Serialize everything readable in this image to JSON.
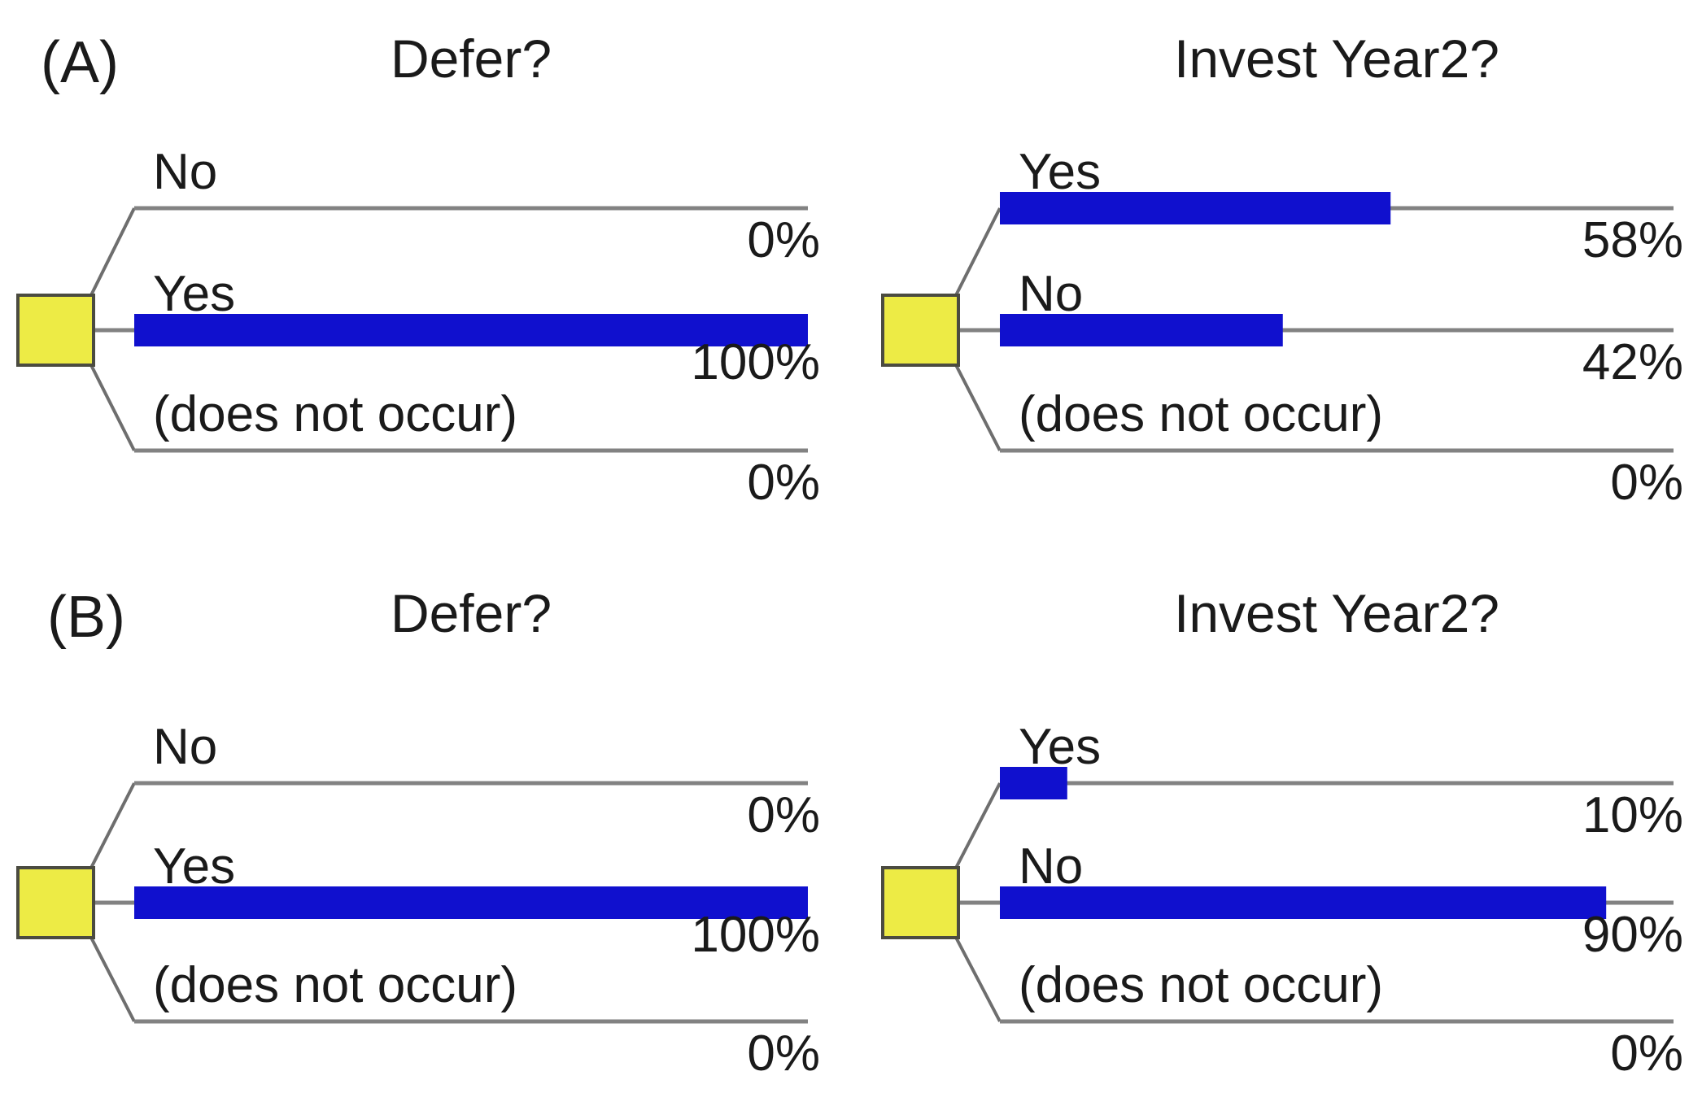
{
  "figure": {
    "description": "Decision tree policy diagrams",
    "colors": {
      "bar": "#1010CE",
      "node_fill": "#EDEB45",
      "node_border": "#4b4b40",
      "line": "#828282",
      "diagonal": "#6e6e6e",
      "text": "#1a1a1a",
      "background": "#ffffff"
    },
    "panels": [
      {
        "label": "(A)",
        "trees": [
          {
            "title": "Defer?",
            "node": "decision-node",
            "branches": [
              {
                "label": "No",
                "percent": "0%",
                "value": 0
              },
              {
                "label": "Yes",
                "percent": "100%",
                "value": 100
              },
              {
                "label": "(does not occur)",
                "percent": "0%",
                "value": 0
              }
            ]
          },
          {
            "title": "Invest Year2?",
            "node": "decision-node",
            "branches": [
              {
                "label": "Yes",
                "percent": "58%",
                "value": 58
              },
              {
                "label": "No",
                "percent": "42%",
                "value": 42
              },
              {
                "label": "(does not occur)",
                "percent": "0%",
                "value": 0
              }
            ]
          }
        ]
      },
      {
        "label": "(B)",
        "trees": [
          {
            "title": "Defer?",
            "node": "decision-node",
            "branches": [
              {
                "label": "No",
                "percent": "0%",
                "value": 0
              },
              {
                "label": "Yes",
                "percent": "100%",
                "value": 100
              },
              {
                "label": "(does not occur)",
                "percent": "0%",
                "value": 0
              }
            ]
          },
          {
            "title": "Invest Year2?",
            "node": "decision-node",
            "branches": [
              {
                "label": "Yes",
                "percent": "10%",
                "value": 10
              },
              {
                "label": "No",
                "percent": "90%",
                "value": 90
              },
              {
                "label": "(does not occur)",
                "percent": "0%",
                "value": 0
              }
            ]
          }
        ]
      }
    ]
  }
}
